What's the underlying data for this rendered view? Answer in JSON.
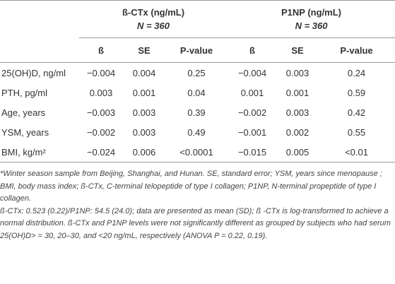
{
  "table": {
    "groups": [
      {
        "title": "ß-CTx (ng/mL)",
        "n": "N = 360"
      },
      {
        "title": "P1NP (ng/mL)",
        "n": "N = 360"
      }
    ],
    "columns": [
      "ß",
      "SE",
      "P-value",
      "ß",
      "SE",
      "P-value"
    ],
    "rows": [
      [
        "25(OH)D, ng/ml",
        "−0.004",
        "0.004",
        "0.25",
        "−0.004",
        "0.003",
        "0.24"
      ],
      [
        "PTH, pg/ml",
        "0.003",
        "0.001",
        "0.04",
        "0.001",
        "0.001",
        "0.59"
      ],
      [
        "Age, years",
        "−0.003",
        "0.003",
        "0.39",
        "−0.002",
        "0.003",
        "0.42"
      ],
      [
        "YSM, years",
        "−0.002",
        "0.003",
        "0.49",
        "−0.001",
        "0.002",
        "0.55"
      ],
      [
        "BMI, kg/m²",
        "−0.024",
        "0.006",
        "<0.0001",
        "−0.015",
        "0.005",
        "<0.01"
      ]
    ]
  },
  "footnotes": [
    "*Winter season sample from Beijing, Shanghai, and Hunan. SE, standard error; YSM, years since menopause ; BMI, body mass index; ß-CTx, C-terminal telopeptide of type I collagen; P1NP, N-terminal propeptide of type I collagen.",
    "ß-CTx: 0.523 (0.22)/P1NP: 54.5 (24.0); data are presented as mean (SD); ß -CTx is log-transformed to achieve a normal distribution. ß-CTx and P1NP levels were not significantly different as grouped by subjects who had serum 25(OH)D> = 30, 20–30, and <20 ng/mL, respectively (ANOVA P = 0.22, 0.19)."
  ]
}
